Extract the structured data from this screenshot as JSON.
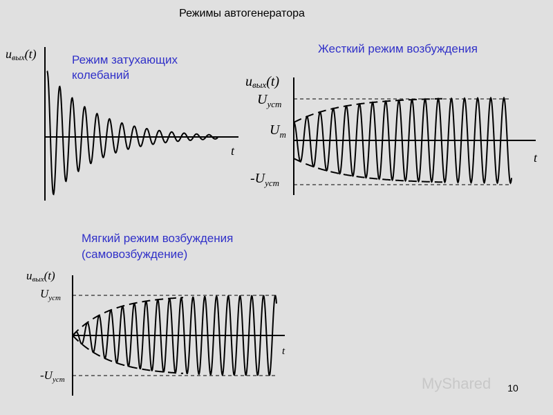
{
  "title": "Режимы автогенератора",
  "page_number": "10",
  "watermark": "MyShared",
  "panels": [
    {
      "caption": [
        "Режим затухающих",
        "колебаний"
      ],
      "y_axis": {
        "symbol": "u",
        "subscript": "вых",
        "arg": "(t)"
      },
      "x_axis": "t",
      "levels": []
    },
    {
      "caption": [
        "Жесткий режим возбуждения"
      ],
      "y_axis": {
        "symbol": "u",
        "subscript": "вых",
        "arg": "(t)"
      },
      "x_axis": "t",
      "levels": [
        {
          "symbol": "U",
          "subscript": "уст"
        },
        {
          "symbol": "U",
          "subscript": "m"
        },
        {
          "symbol": "-U",
          "subscript": "уст"
        }
      ]
    },
    {
      "caption": [
        "Мягкий режим возбуждения",
        "(самовозбуждение)"
      ],
      "y_axis": {
        "symbol": "u",
        "subscript": "вых",
        "arg": "(t)"
      },
      "x_axis": "t",
      "levels": [
        {
          "symbol": "U",
          "subscript": "уст"
        },
        {
          "symbol": "-U",
          "subscript": "уст"
        }
      ]
    }
  ]
}
